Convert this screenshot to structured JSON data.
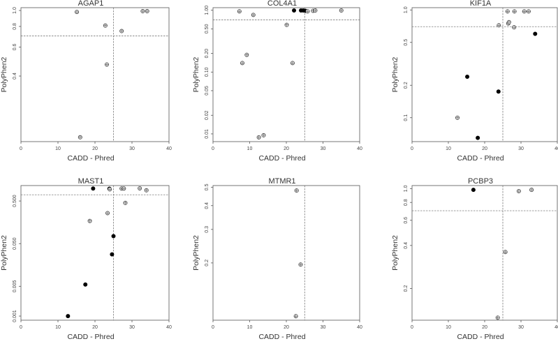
{
  "chart_data": [
    {
      "type": "scatter",
      "title": "AGAP1",
      "xlabel": "CADD - Phred",
      "ylabel": "PolyPhen2",
      "xlim": [
        0,
        40
      ],
      "yscale": "log",
      "ylim": [
        0.16,
        1.04
      ],
      "xticks": [
        0,
        10,
        20,
        30,
        40
      ],
      "yticks": [
        0.4,
        0.6,
        0.8,
        1.0
      ],
      "ytick_labels": [
        "0.4",
        "0.6",
        "0.8",
        "1.0"
      ],
      "ref_x": 25,
      "ref_y": 0.7,
      "points": [
        {
          "x": 15.1,
          "y": 0.98,
          "filled": false
        },
        {
          "x": 22.8,
          "y": 0.81,
          "filled": false
        },
        {
          "x": 23.2,
          "y": 0.47,
          "filled": false
        },
        {
          "x": 27.2,
          "y": 0.75,
          "filled": false
        },
        {
          "x": 32.9,
          "y": 0.99,
          "filled": false
        },
        {
          "x": 34.1,
          "y": 0.99,
          "filled": false
        },
        {
          "x": 16.0,
          "y": 0.17,
          "filled": false
        }
      ]
    },
    {
      "type": "scatter",
      "title": "COL4A1",
      "xlabel": "CADD - Phred",
      "ylabel": "PolyPhen2",
      "xlim": [
        0,
        40
      ],
      "yscale": "log",
      "ylim": [
        0.0075,
        1.1
      ],
      "xticks": [
        0,
        10,
        20,
        30,
        40
      ],
      "yticks": [
        0.01,
        0.02,
        0.05,
        0.1,
        0.2,
        0.5,
        1.0
      ],
      "ytick_labels": [
        "0.01",
        "0.02",
        "0.05",
        "0.10",
        "0.20",
        "0.50",
        "1.00"
      ],
      "ref_x": 25,
      "ref_y": 0.7,
      "points": [
        {
          "x": 7.2,
          "y": 0.96,
          "filled": false
        },
        {
          "x": 11.0,
          "y": 0.84,
          "filled": false
        },
        {
          "x": 8.0,
          "y": 0.14,
          "filled": false
        },
        {
          "x": 9.2,
          "y": 0.19,
          "filled": false
        },
        {
          "x": 12.5,
          "y": 0.0088,
          "filled": false
        },
        {
          "x": 13.8,
          "y": 0.0095,
          "filled": false
        },
        {
          "x": 20.1,
          "y": 0.58,
          "filled": false
        },
        {
          "x": 21.7,
          "y": 0.14,
          "filled": false
        },
        {
          "x": 22.1,
          "y": 0.99,
          "filled": true
        },
        {
          "x": 24.0,
          "y": 0.99,
          "filled": true
        },
        {
          "x": 24.6,
          "y": 0.99,
          "filled": true
        },
        {
          "x": 25.2,
          "y": 0.98,
          "filled": true
        },
        {
          "x": 25.8,
          "y": 0.96,
          "filled": false
        },
        {
          "x": 27.3,
          "y": 0.98,
          "filled": false
        },
        {
          "x": 27.9,
          "y": 0.99,
          "filled": false
        },
        {
          "x": 35.0,
          "y": 0.99,
          "filled": false
        }
      ]
    },
    {
      "type": "scatter",
      "title": "KIF1A",
      "xlabel": "CADD - Phred",
      "ylabel": "PolyPhen2",
      "xlim": [
        0,
        40
      ],
      "yscale": "log",
      "ylim": [
        0.06,
        1.05
      ],
      "xticks": [
        0,
        10,
        20,
        30,
        40
      ],
      "yticks": [
        0.1,
        0.2,
        0.5,
        1.0
      ],
      "ytick_labels": [
        "0.1",
        "0.2",
        "0.5",
        "1.0"
      ],
      "ref_x": 25,
      "ref_y": 0.7,
      "points": [
        {
          "x": 12.5,
          "y": 0.1,
          "filled": false
        },
        {
          "x": 15.2,
          "y": 0.24,
          "filled": true
        },
        {
          "x": 18.1,
          "y": 0.065,
          "filled": true
        },
        {
          "x": 23.8,
          "y": 0.175,
          "filled": true
        },
        {
          "x": 23.9,
          "y": 0.72,
          "filled": false
        },
        {
          "x": 26.3,
          "y": 0.97,
          "filled": false
        },
        {
          "x": 26.5,
          "y": 0.75,
          "filled": false
        },
        {
          "x": 26.7,
          "y": 0.77,
          "filled": false
        },
        {
          "x": 28.2,
          "y": 0.97,
          "filled": false
        },
        {
          "x": 28.1,
          "y": 0.69,
          "filled": false
        },
        {
          "x": 30.9,
          "y": 0.97,
          "filled": false
        },
        {
          "x": 32.1,
          "y": 0.97,
          "filled": false
        },
        {
          "x": 33.9,
          "y": 0.6,
          "filled": true
        }
      ]
    },
    {
      "type": "scatter",
      "title": "MAST1",
      "xlabel": "CADD - Phred",
      "ylabel": "PolyPhen2",
      "xlim": [
        0,
        40
      ],
      "yscale": "log",
      "ylim": [
        0.0008,
        1.15
      ],
      "xticks": [
        0,
        10,
        20,
        30,
        40
      ],
      "yticks": [
        0.001,
        0.005,
        0.05,
        0.5
      ],
      "ytick_labels": [
        "0.001",
        "0.005",
        "0.050",
        "0.500"
      ],
      "ref_x": 25,
      "ref_y": 0.7,
      "points": [
        {
          "x": 12.7,
          "y": 0.001,
          "filled": true
        },
        {
          "x": 17.4,
          "y": 0.0055,
          "filled": true
        },
        {
          "x": 18.6,
          "y": 0.17,
          "filled": false
        },
        {
          "x": 19.5,
          "y": 0.98,
          "filled": true
        },
        {
          "x": 23.4,
          "y": 0.26,
          "filled": false
        },
        {
          "x": 23.9,
          "y": 0.97,
          "filled": true
        },
        {
          "x": 24.0,
          "y": 0.94,
          "filled": false
        },
        {
          "x": 24.6,
          "y": 0.028,
          "filled": true
        },
        {
          "x": 25.0,
          "y": 0.075,
          "filled": true
        },
        {
          "x": 27.2,
          "y": 0.98,
          "filled": false
        },
        {
          "x": 27.8,
          "y": 0.98,
          "filled": false
        },
        {
          "x": 28.2,
          "y": 0.45,
          "filled": false
        },
        {
          "x": 32.1,
          "y": 0.99,
          "filled": false
        },
        {
          "x": 33.9,
          "y": 0.89,
          "filled": false
        }
      ]
    },
    {
      "type": "scatter",
      "title": "MTMR1",
      "xlabel": "CADD - Phred",
      "ylabel": "PolyPhen2",
      "xlim": [
        0,
        40
      ],
      "yscale": "log",
      "ylim": [
        0.1,
        0.51
      ],
      "xticks": [
        0,
        10,
        20,
        30,
        40
      ],
      "yticks": [
        0.2,
        0.3,
        0.4,
        0.5
      ],
      "ytick_labels": [
        "0.2",
        "0.3",
        "0.4",
        "0.5"
      ],
      "ref_x": 25,
      "ref_y": null,
      "points": [
        {
          "x": 22.8,
          "y": 0.48,
          "filled": false
        },
        {
          "x": 23.9,
          "y": 0.196,
          "filled": false
        },
        {
          "x": 22.6,
          "y": 0.105,
          "filled": false
        }
      ]
    },
    {
      "type": "scatter",
      "title": "PCBP3",
      "xlabel": "CADD - Phred",
      "ylabel": "PolyPhen2",
      "xlim": [
        0,
        40
      ],
      "yscale": "log",
      "ylim": [
        0.12,
        1.05
      ],
      "xticks": [
        0,
        10,
        20,
        30,
        40
      ],
      "yticks": [
        0.2,
        0.4,
        0.6,
        0.8,
        1.0
      ],
      "ytick_labels": [
        "0.2",
        "0.4",
        "0.6",
        "0.8",
        "1.0"
      ],
      "ref_x": 25,
      "ref_y": 0.7,
      "points": [
        {
          "x": 16.9,
          "y": 0.98,
          "filled": true
        },
        {
          "x": 23.6,
          "y": 0.125,
          "filled": false
        },
        {
          "x": 25.7,
          "y": 0.36,
          "filled": false
        },
        {
          "x": 29.4,
          "y": 0.96,
          "filled": false
        },
        {
          "x": 32.9,
          "y": 0.98,
          "filled": false
        }
      ]
    }
  ]
}
